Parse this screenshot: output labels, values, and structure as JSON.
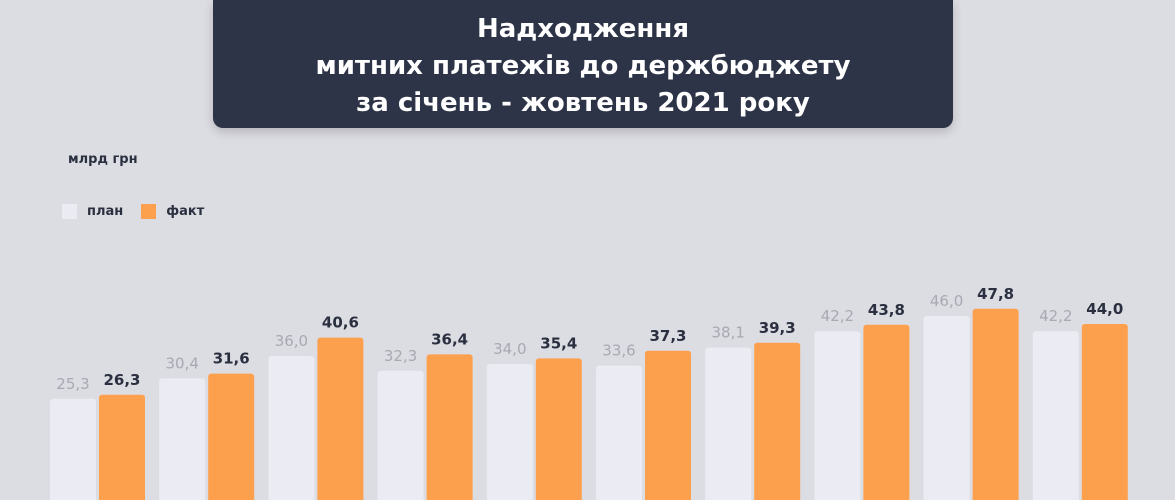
{
  "header": {
    "title_lines": [
      "Надходження",
      "митних платежів до держбюджету",
      "за січень - жовтень 2021 року"
    ]
  },
  "unit_label": "млрд грн",
  "legend": [
    {
      "label": "план",
      "color": "#ebebf3"
    },
    {
      "label": "факт",
      "color": "#fda04d"
    }
  ],
  "chart_data": {
    "type": "bar",
    "title": "Надходження митних платежів до держбюджету за січень - жовтень 2021 року",
    "ylabel": "млрд грн",
    "categories": [
      "",
      "",
      "",
      "",
      "",
      "",
      "",
      "",
      "",
      ""
    ],
    "series": [
      {
        "name": "план",
        "color": "#ebebf3",
        "values": [
          25.3,
          30.4,
          36.0,
          32.3,
          34.0,
          33.6,
          38.1,
          42.2,
          46.0,
          42.2
        ],
        "labels": [
          "25,3",
          "30,4",
          "36,0",
          "32,3",
          "34,0",
          "33,6",
          "38,1",
          "42,2",
          "46,0",
          "42,2"
        ]
      },
      {
        "name": "факт",
        "color": "#fda04d",
        "values": [
          26.3,
          31.6,
          40.6,
          36.4,
          35.4,
          37.3,
          39.3,
          43.8,
          47.8,
          44.0
        ],
        "labels": [
          "26,3",
          "31,6",
          "40,6",
          "36,4",
          "35,4",
          "37,3",
          "39,3",
          "43,8",
          "47,8",
          "44,0"
        ]
      }
    ],
    "label_colors": {
      "plan": "#a7a9b3",
      "fact": "#2b3040"
    },
    "grid": false,
    "legend_position": "top-left"
  }
}
